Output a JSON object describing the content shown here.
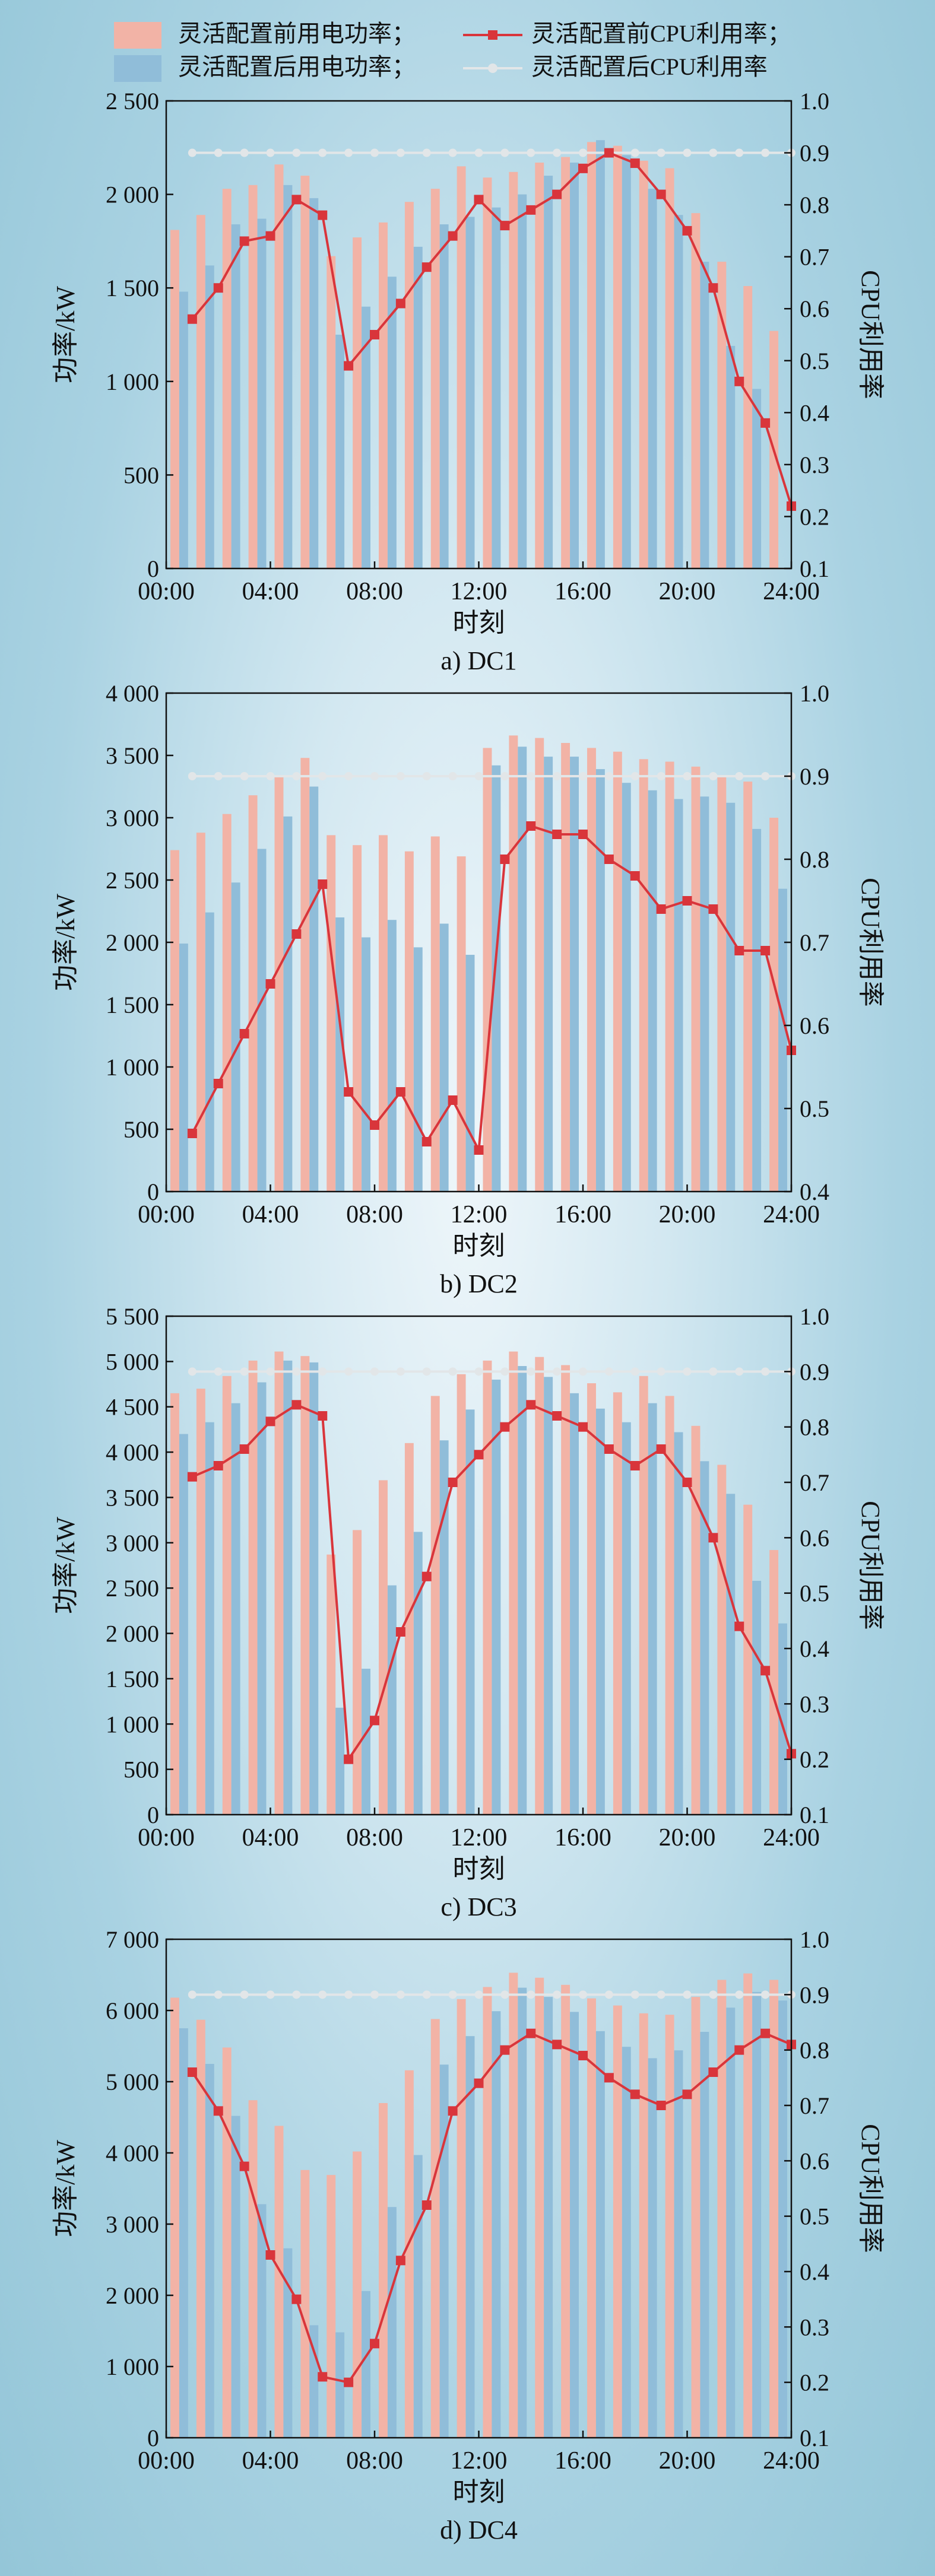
{
  "legend": {
    "before_power": "灵活配置前用电功率；",
    "after_power": "灵活配置后用电功率；",
    "before_cpu": "灵活配置前CPU利用率；",
    "after_cpu": "灵活配置后CPU利用率"
  },
  "colors": {
    "before_bar": "#f2b3a6",
    "after_bar": "#90bdd9",
    "before_line": "#d9353b",
    "after_line": "#e2e6e8"
  },
  "chart_data": [
    {
      "type": "bar",
      "caption": "a) DC1",
      "xlabel": "时刻",
      "ylabel": "功率/kW",
      "y2label": "CPU利用率",
      "xticks": [
        "00:00",
        "04:00",
        "08:00",
        "12:00",
        "16:00",
        "20:00",
        "24:00"
      ],
      "yticks": [
        "0",
        "500",
        "1 000",
        "1 500",
        "2 000",
        "2 500"
      ],
      "y2ticks": [
        "0.1",
        "0.2",
        "0.3",
        "0.4",
        "0.5",
        "0.6",
        "0.7",
        "0.8",
        "0.9",
        "1.0"
      ],
      "ylim": [
        0,
        2500
      ],
      "y2lim": [
        0.1,
        1.0
      ],
      "x": [
        1,
        2,
        3,
        4,
        5,
        6,
        7,
        8,
        9,
        10,
        11,
        12,
        13,
        14,
        15,
        16,
        17,
        18,
        19,
        20,
        21,
        22,
        23,
        24
      ],
      "series": [
        {
          "name": "灵活配置前用电功率",
          "kind": "bar",
          "values": [
            1810,
            1890,
            2030,
            2050,
            2160,
            2100,
            1670,
            1770,
            1850,
            1960,
            2030,
            2150,
            2090,
            2120,
            2170,
            2200,
            2280,
            2260,
            2180,
            2140,
            1900,
            1640,
            1510,
            1270
          ]
        },
        {
          "name": "灵活配置后用电功率",
          "kind": "bar",
          "values": [
            1480,
            1620,
            1840,
            1870,
            2050,
            1980,
            1250,
            1400,
            1560,
            1720,
            1840,
            1880,
            1930,
            2000,
            2100,
            2170,
            2290,
            2210,
            2030,
            1890,
            1640,
            1190,
            960,
            0
          ]
        },
        {
          "name": "灵活配置前CPU利用率",
          "kind": "line",
          "values": [
            0.58,
            0.64,
            0.73,
            0.74,
            0.81,
            0.78,
            0.49,
            0.55,
            0.61,
            0.68,
            0.74,
            0.81,
            0.76,
            0.79,
            0.82,
            0.87,
            0.9,
            0.88,
            0.82,
            0.75,
            0.64,
            0.46,
            0.38,
            0.22
          ]
        },
        {
          "name": "灵活配置后CPU利用率",
          "kind": "line",
          "values": [
            0.9,
            0.9,
            0.9,
            0.9,
            0.9,
            0.9,
            0.9,
            0.9,
            0.9,
            0.9,
            0.9,
            0.9,
            0.9,
            0.9,
            0.9,
            0.9,
            0.9,
            0.9,
            0.9,
            0.9,
            0.9,
            0.9,
            0.9,
            0.9
          ]
        }
      ]
    },
    {
      "type": "bar",
      "caption": "b) DC2",
      "xlabel": "时刻",
      "ylabel": "功率/kW",
      "y2label": "CPU利用率",
      "xticks": [
        "00:00",
        "04:00",
        "08:00",
        "12:00",
        "16:00",
        "20:00",
        "24:00"
      ],
      "yticks": [
        "0",
        "500",
        "1 000",
        "1 500",
        "2 000",
        "2 500",
        "3 000",
        "3 500",
        "4 000"
      ],
      "y2ticks": [
        "0.4",
        "0.5",
        "0.6",
        "0.7",
        "0.8",
        "0.9",
        "1.0"
      ],
      "ylim": [
        0,
        4000
      ],
      "y2lim": [
        0.4,
        1.0
      ],
      "x": [
        1,
        2,
        3,
        4,
        5,
        6,
        7,
        8,
        9,
        10,
        11,
        12,
        13,
        14,
        15,
        16,
        17,
        18,
        19,
        20,
        21,
        22,
        23,
        24
      ],
      "series": [
        {
          "name": "灵活配置前用电功率",
          "kind": "bar",
          "values": [
            2740,
            2880,
            3030,
            3180,
            3330,
            3480,
            2860,
            2780,
            2860,
            2730,
            2850,
            2690,
            3560,
            3660,
            3640,
            3600,
            3560,
            3530,
            3470,
            3450,
            3410,
            3340,
            3290,
            3000
          ]
        },
        {
          "name": "灵活配置后用电功率",
          "kind": "bar",
          "values": [
            1990,
            2240,
            2480,
            2750,
            3010,
            3250,
            2200,
            2040,
            2180,
            1960,
            2150,
            1900,
            3420,
            3570,
            3490,
            3490,
            3390,
            3280,
            3220,
            3150,
            3170,
            3120,
            2910,
            2430
          ]
        },
        {
          "name": "灵活配置前CPU利用率",
          "kind": "line",
          "values": [
            0.47,
            0.53,
            0.59,
            0.65,
            0.71,
            0.77,
            0.52,
            0.48,
            0.52,
            0.46,
            0.51,
            0.45,
            0.8,
            0.84,
            0.83,
            0.83,
            0.8,
            0.78,
            0.74,
            0.75,
            0.74,
            0.69,
            0.69,
            0.57
          ]
        },
        {
          "name": "灵活配置后CPU利用率",
          "kind": "line",
          "values": [
            0.9,
            0.9,
            0.9,
            0.9,
            0.9,
            0.9,
            0.9,
            0.9,
            0.9,
            0.9,
            0.9,
            0.9,
            0.9,
            0.9,
            0.9,
            0.9,
            0.9,
            0.9,
            0.9,
            0.9,
            0.9,
            0.9,
            0.9,
            0.9
          ]
        }
      ]
    },
    {
      "type": "bar",
      "caption": "c) DC3",
      "xlabel": "时刻",
      "ylabel": "功率/kW",
      "y2label": "CPU利用率",
      "xticks": [
        "00:00",
        "04:00",
        "08:00",
        "12:00",
        "16:00",
        "20:00",
        "24:00"
      ],
      "yticks": [
        "0",
        "500",
        "1 000",
        "1 500",
        "2 000",
        "2 500",
        "3 000",
        "3 500",
        "4 000",
        "4 500",
        "5 000",
        "5 500"
      ],
      "y2ticks": [
        "0.1",
        "0.2",
        "0.3",
        "0.4",
        "0.5",
        "0.6",
        "0.7",
        "0.8",
        "0.9",
        "1.0"
      ],
      "ylim": [
        0,
        5500
      ],
      "y2lim": [
        0.1,
        1.0
      ],
      "x": [
        1,
        2,
        3,
        4,
        5,
        6,
        7,
        8,
        9,
        10,
        11,
        12,
        13,
        14,
        15,
        16,
        17,
        18,
        19,
        20,
        21,
        22,
        23,
        24
      ],
      "series": [
        {
          "name": "灵活配置前用电功率",
          "kind": "bar",
          "values": [
            4650,
            4700,
            4840,
            5010,
            5110,
            5060,
            2870,
            3140,
            3690,
            4100,
            4620,
            4860,
            5010,
            5110,
            5050,
            4960,
            4760,
            4660,
            4840,
            4620,
            4290,
            3860,
            3420,
            2920
          ]
        },
        {
          "name": "灵活配置后用电功率",
          "kind": "bar",
          "values": [
            4200,
            4330,
            4540,
            4770,
            5010,
            4990,
            1180,
            1610,
            2530,
            3120,
            4130,
            4470,
            4800,
            4950,
            4830,
            4650,
            4480,
            4330,
            4540,
            4220,
            3900,
            3540,
            2580,
            2110
          ]
        },
        {
          "name": "灵活配置前CPU利用率",
          "kind": "line",
          "values": [
            0.71,
            0.73,
            0.76,
            0.81,
            0.84,
            0.82,
            0.2,
            0.27,
            0.43,
            0.53,
            0.7,
            0.75,
            0.8,
            0.84,
            0.82,
            0.8,
            0.76,
            0.73,
            0.76,
            0.7,
            0.6,
            0.44,
            0.36,
            0.21
          ]
        },
        {
          "name": "灵活配置后CPU利用率",
          "kind": "line",
          "values": [
            0.9,
            0.9,
            0.9,
            0.9,
            0.9,
            0.9,
            0.9,
            0.9,
            0.9,
            0.9,
            0.9,
            0.9,
            0.9,
            0.9,
            0.9,
            0.9,
            0.9,
            0.9,
            0.9,
            0.9,
            0.9,
            0.9,
            0.9,
            0.9
          ]
        }
      ]
    },
    {
      "type": "bar",
      "caption": "d) DC4",
      "xlabel": "时刻",
      "ylabel": "功率/kW",
      "y2label": "CPU利用率",
      "xticks": [
        "00:00",
        "04:00",
        "08:00",
        "12:00",
        "16:00",
        "20:00",
        "24:00"
      ],
      "yticks": [
        "0",
        "1 000",
        "2 000",
        "3 000",
        "4 000",
        "5 000",
        "6 000",
        "7 000"
      ],
      "y2ticks": [
        "0.1",
        "0.2",
        "0.3",
        "0.4",
        "0.5",
        "0.6",
        "0.7",
        "0.8",
        "0.9",
        "1.0"
      ],
      "ylim": [
        0,
        7000
      ],
      "y2lim": [
        0.1,
        1.0
      ],
      "x": [
        1,
        2,
        3,
        4,
        5,
        6,
        7,
        8,
        9,
        10,
        11,
        12,
        13,
        14,
        15,
        16,
        17,
        18,
        19,
        20,
        21,
        22,
        23,
        24
      ],
      "series": [
        {
          "name": "灵活配置前用电功率",
          "kind": "bar",
          "values": [
            6180,
            5870,
            5480,
            4740,
            4380,
            3760,
            3690,
            4020,
            4700,
            5160,
            5880,
            6160,
            6330,
            6530,
            6460,
            6360,
            6170,
            6070,
            5960,
            5940,
            6190,
            6430,
            6520,
            6430
          ]
        },
        {
          "name": "灵活配置后用电功率",
          "kind": "bar",
          "values": [
            5750,
            5250,
            4520,
            3280,
            2660,
            1580,
            1480,
            2060,
            3240,
            3970,
            5240,
            5640,
            5990,
            6320,
            6190,
            5980,
            5710,
            5490,
            5330,
            5440,
            5700,
            6040,
            6260,
            6140
          ]
        },
        {
          "name": "灵活配置前CPU利用率",
          "kind": "line",
          "values": [
            0.76,
            0.69,
            0.59,
            0.43,
            0.35,
            0.21,
            0.2,
            0.27,
            0.42,
            0.52,
            0.69,
            0.74,
            0.8,
            0.83,
            0.81,
            0.79,
            0.75,
            0.72,
            0.7,
            0.72,
            0.76,
            0.8,
            0.83,
            0.81
          ]
        },
        {
          "name": "灵活配置后CPU利用率",
          "kind": "line",
          "values": [
            0.9,
            0.9,
            0.9,
            0.9,
            0.9,
            0.9,
            0.9,
            0.9,
            0.9,
            0.9,
            0.9,
            0.9,
            0.9,
            0.9,
            0.9,
            0.9,
            0.9,
            0.9,
            0.9,
            0.9,
            0.9,
            0.9,
            0.9,
            0.9
          ]
        }
      ]
    }
  ]
}
